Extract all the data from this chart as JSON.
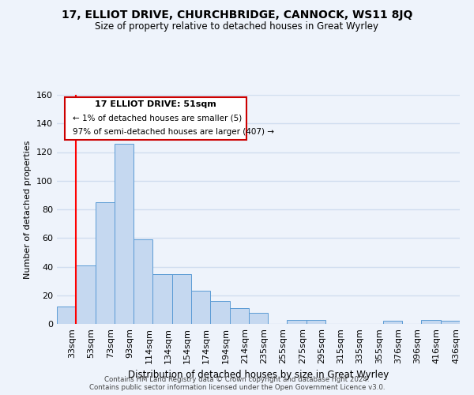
{
  "title": "17, ELLIOT DRIVE, CHURCHBRIDGE, CANNOCK, WS11 8JQ",
  "subtitle": "Size of property relative to detached houses in Great Wyrley",
  "xlabel": "Distribution of detached houses by size in Great Wyrley",
  "ylabel": "Number of detached properties",
  "bin_labels": [
    "33sqm",
    "53sqm",
    "73sqm",
    "93sqm",
    "114sqm",
    "134sqm",
    "154sqm",
    "174sqm",
    "194sqm",
    "214sqm",
    "235sqm",
    "255sqm",
    "275sqm",
    "295sqm",
    "315sqm",
    "335sqm",
    "355sqm",
    "376sqm",
    "396sqm",
    "416sqm",
    "436sqm"
  ],
  "bar_heights": [
    12,
    41,
    85,
    126,
    59,
    35,
    35,
    23,
    16,
    11,
    8,
    0,
    3,
    3,
    0,
    0,
    0,
    2,
    0,
    3,
    2
  ],
  "bar_color": "#c5d8f0",
  "bar_edge_color": "#5b9bd5",
  "bg_color": "#eef3fb",
  "grid_color": "#d0ddef",
  "red_line_x": 1,
  "annotation_title": "17 ELLIOT DRIVE: 51sqm",
  "annotation_line1": "← 1% of detached houses are smaller (5)",
  "annotation_line2": "97% of semi-detached houses are larger (407) →",
  "annotation_box_color": "#ffffff",
  "annotation_box_edge": "#cc0000",
  "ylim": [
    0,
    160
  ],
  "yticks": [
    0,
    20,
    40,
    60,
    80,
    100,
    120,
    140,
    160
  ],
  "footer1": "Contains HM Land Registry data © Crown copyright and database right 2024.",
  "footer2": "Contains public sector information licensed under the Open Government Licence v3.0."
}
